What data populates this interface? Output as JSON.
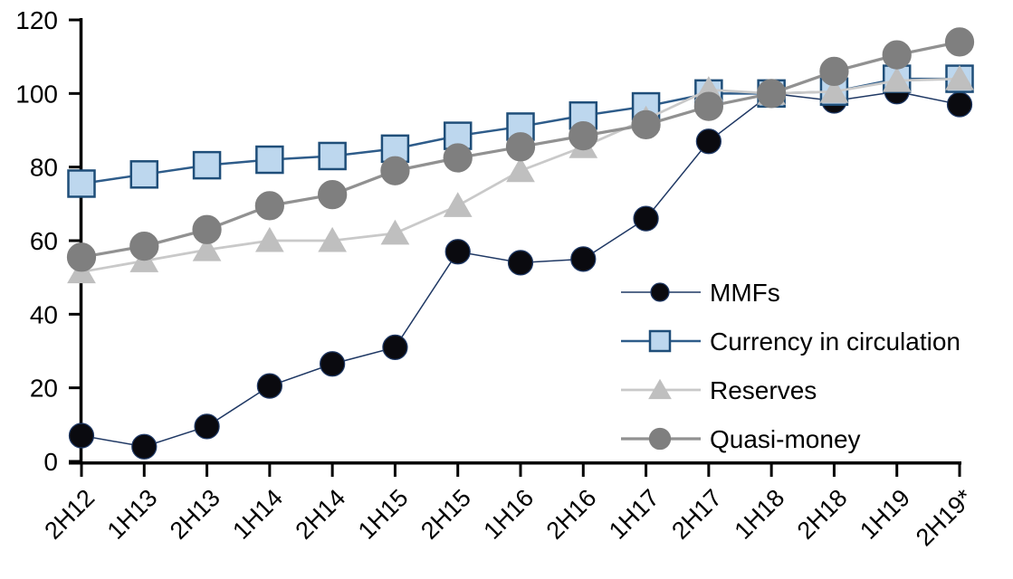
{
  "chart_data": {
    "type": "line",
    "title": "",
    "xlabel": "",
    "ylabel": "",
    "categories": [
      "2H12",
      "1H13",
      "2H13",
      "1H14",
      "2H14",
      "1H15",
      "2H15",
      "1H16",
      "2H16",
      "1H17",
      "2H17",
      "1H18",
      "2H18",
      "1H19",
      "2H19*"
    ],
    "series": [
      {
        "name": "MMFs",
        "marker": "circle",
        "marker_fill": "#0a0a0f",
        "marker_edge": "#1F3864",
        "line_color": "#1F3864",
        "line_width": 1.5,
        "marker_size": 27,
        "values": [
          7,
          4,
          9.5,
          20.5,
          26.5,
          31,
          57,
          54,
          55,
          66,
          87,
          100,
          98,
          100.5,
          97
        ]
      },
      {
        "name": "Currency in circulation",
        "marker": "square",
        "marker_fill": "#BDD7EE",
        "marker_edge": "#1F4E79",
        "line_color": "#2E5C8A",
        "line_width": 2.5,
        "marker_size": 29,
        "values": [
          75.5,
          78,
          80.5,
          82,
          83,
          85,
          88.5,
          91,
          94,
          96.5,
          100,
          100,
          100.5,
          104,
          104
        ]
      },
      {
        "name": "Reserves",
        "marker": "triangle",
        "marker_fill": "#BFBFBF",
        "marker_edge": "#BFBFBF",
        "line_color": "#C9C9C9",
        "line_width": 2.75,
        "marker_size": 30,
        "values": [
          51.5,
          54.5,
          57.5,
          60,
          60,
          62,
          69.5,
          79,
          85.5,
          93,
          101,
          100,
          100.5,
          103.5,
          104
        ]
      },
      {
        "name": "Quasi-money",
        "marker": "circle",
        "marker_fill": "#7F7F7F",
        "marker_edge": "#7F7F7F",
        "line_color": "#919191",
        "line_width": 3.25,
        "marker_size": 31,
        "values": [
          55.5,
          58.5,
          63,
          69.5,
          72.5,
          79,
          82.5,
          85.5,
          88.5,
          91.5,
          96.5,
          100,
          106,
          110.5,
          114
        ]
      }
    ],
    "ylim": [
      0,
      120
    ],
    "ytick_step": 20,
    "ytick_labels": [
      "0",
      "20",
      "40",
      "60",
      "80",
      "100",
      "120"
    ],
    "grid": false,
    "legend_position": "middle-right",
    "legend_entries": [
      "MMFs",
      "Currency in circulation",
      "Reserves",
      "Quasi-money"
    ],
    "axis_color": "#000000",
    "text_color": "#000000",
    "background": "#FFFFFF"
  }
}
